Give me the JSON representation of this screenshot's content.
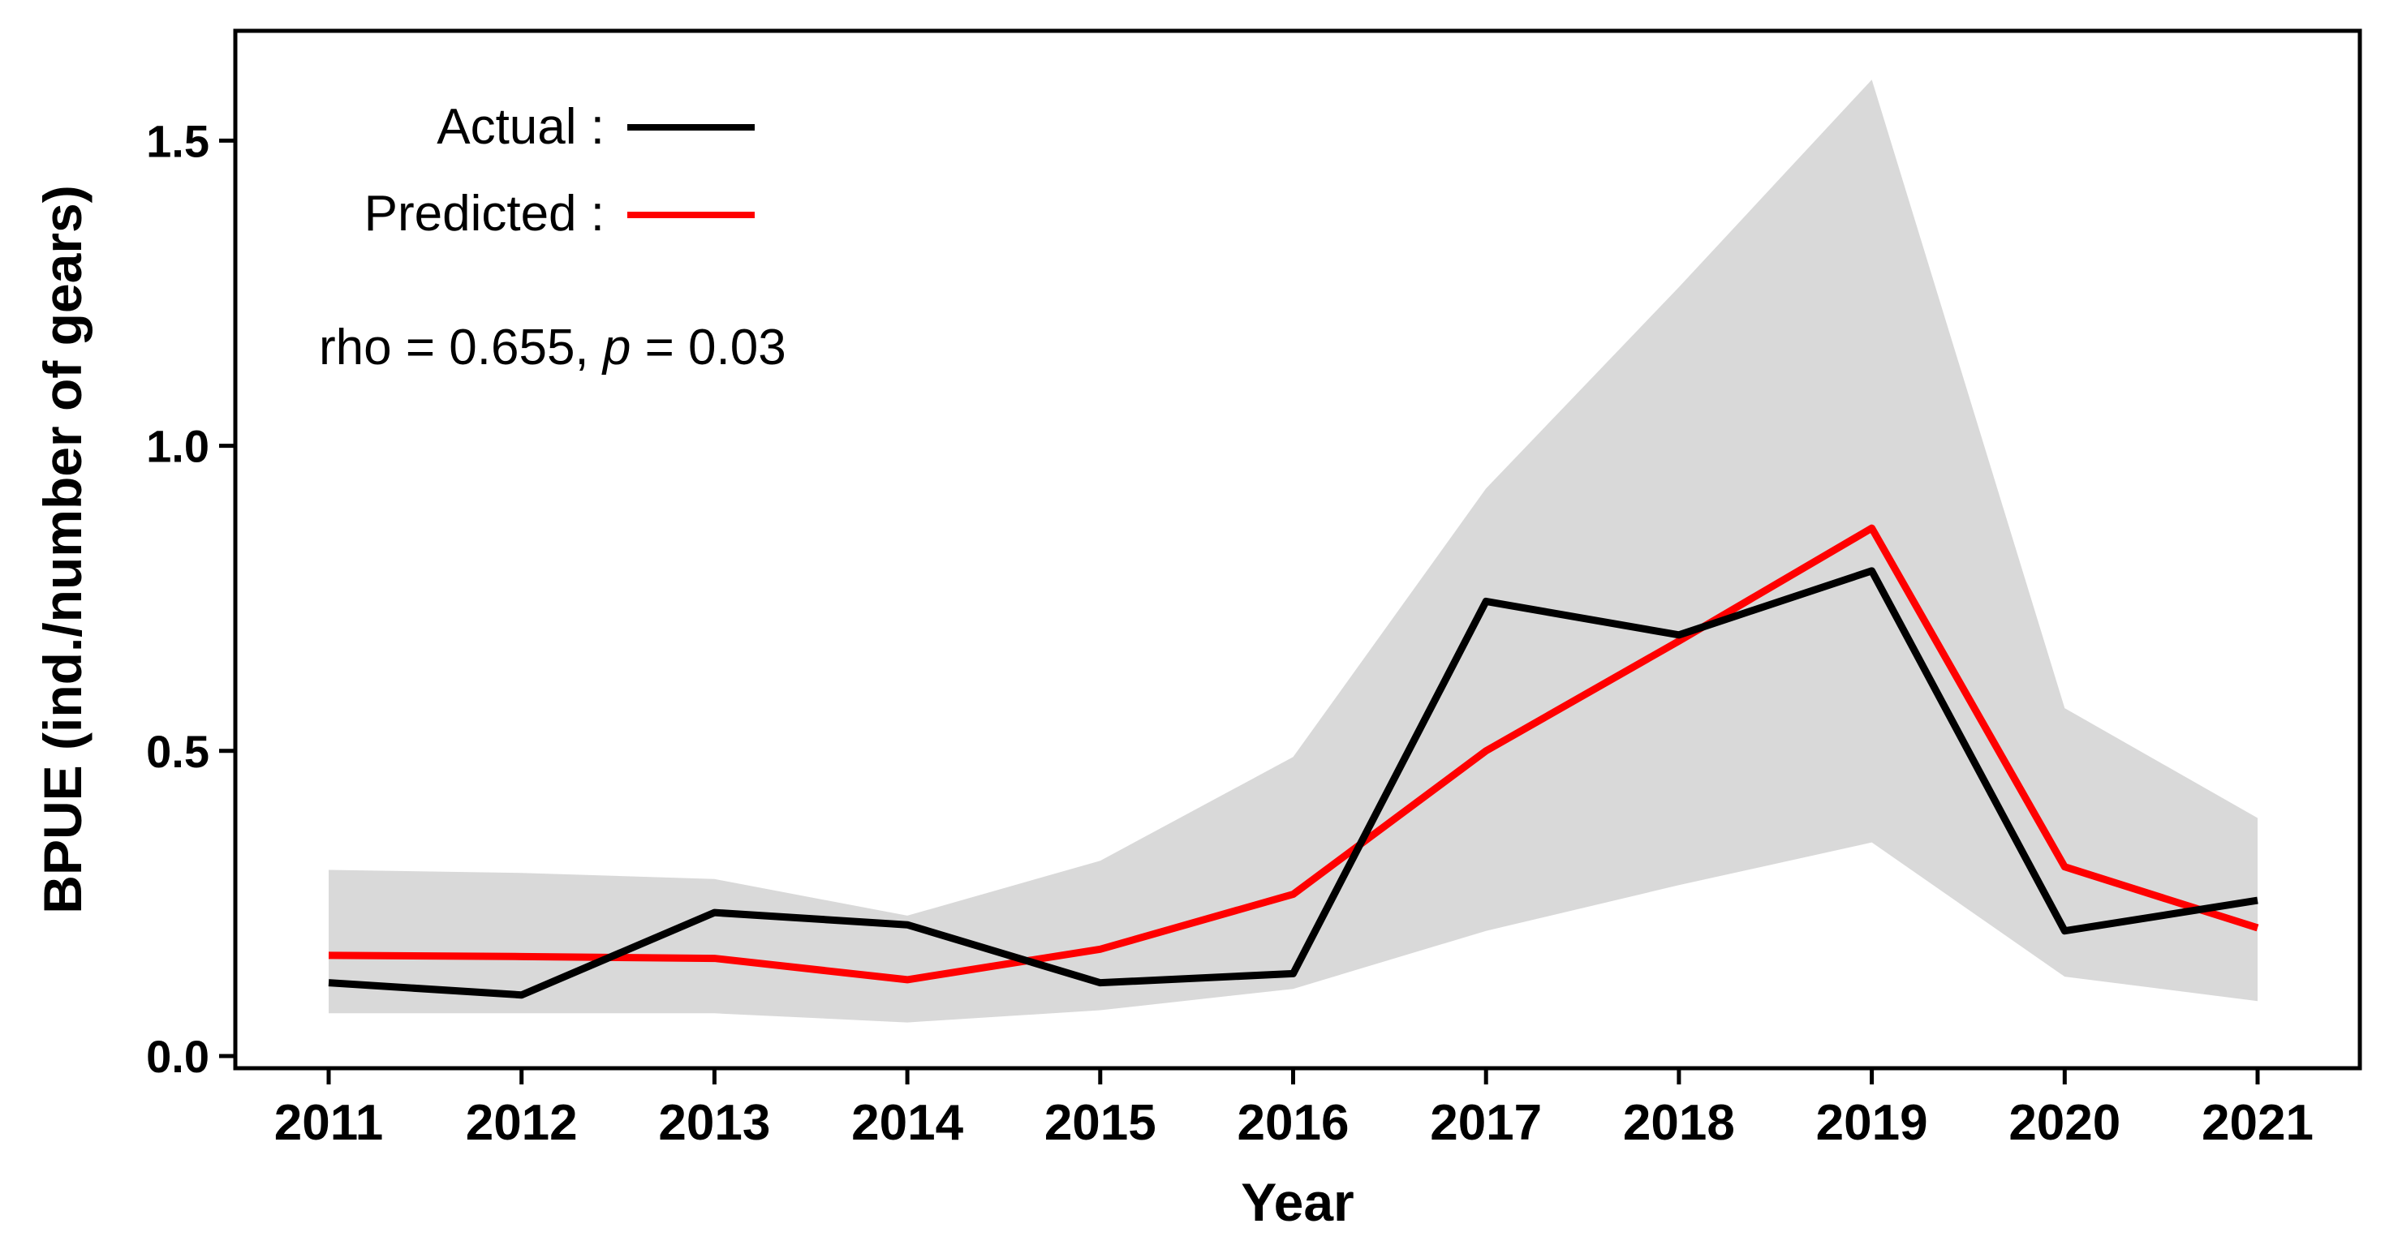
{
  "chart_data": {
    "type": "line",
    "title": "",
    "xlabel": "Year",
    "ylabel": "BPUE (ind./number of gears)",
    "x": [
      2011,
      2012,
      2013,
      2014,
      2015,
      2016,
      2017,
      2018,
      2019,
      2020,
      2021
    ],
    "x_tick_labels": [
      "2011",
      "2012",
      "2013",
      "2014",
      "2015",
      "2016",
      "2017",
      "2018",
      "2019",
      "2020",
      "2021"
    ],
    "ylim": [
      -0.02,
      1.68
    ],
    "yticks": [
      0.0,
      0.5,
      1.0,
      1.5
    ],
    "y_tick_labels": [
      "0.0",
      "0.5",
      "1.0",
      "1.5"
    ],
    "grid": false,
    "legend_position": "top-left",
    "series": [
      {
        "name": "Actual",
        "legend_label": "Actual :",
        "color": "#000000",
        "values": [
          0.12,
          0.1,
          0.235,
          0.215,
          0.12,
          0.135,
          0.745,
          0.69,
          0.795,
          0.205,
          0.255
        ]
      },
      {
        "name": "Predicted",
        "legend_label": "Predicted :",
        "color": "#ff0000",
        "values": [
          0.165,
          0.163,
          0.16,
          0.125,
          0.175,
          0.265,
          0.5,
          0.68,
          0.865,
          0.31,
          0.21
        ]
      }
    ],
    "confidence_band": {
      "color": "#d9d9d9",
      "lower": [
        0.07,
        0.07,
        0.07,
        0.055,
        0.075,
        0.11,
        0.205,
        0.28,
        0.35,
        0.13,
        0.09
      ],
      "upper": [
        0.305,
        0.3,
        0.29,
        0.23,
        0.32,
        0.49,
        0.93,
        1.26,
        1.6,
        0.57,
        0.39
      ]
    },
    "annotation": {
      "prefix": "rho = 0.655, ",
      "italic": "p",
      "suffix": " = 0.03"
    }
  }
}
